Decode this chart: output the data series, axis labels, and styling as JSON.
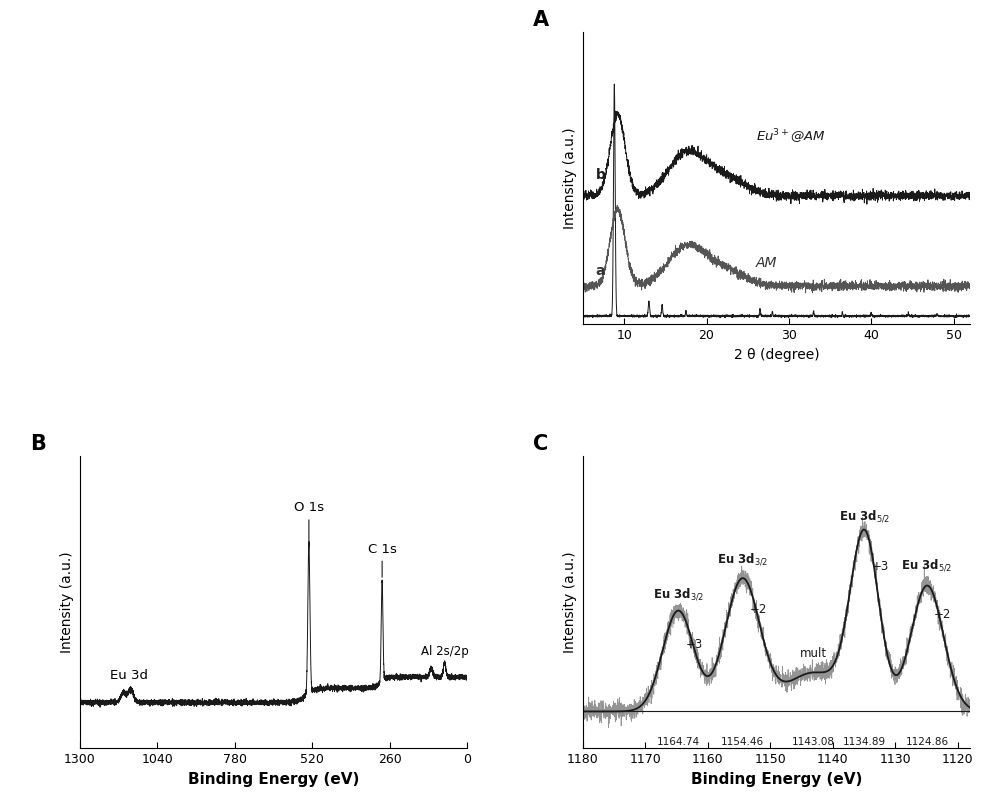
{
  "panel_A_label": "A",
  "panel_B_label": "B",
  "panel_C_label": "C",
  "xrd_xlim": [
    5,
    52
  ],
  "xrd_xticks": [
    10,
    20,
    30,
    40,
    50
  ],
  "xrd_xlabel": "2 θ (degree)",
  "xrd_ylabel": "Intensity (a.u.)",
  "xps_B_xlim": [
    1300,
    0
  ],
  "xps_B_xticks": [
    1300,
    1040,
    780,
    520,
    260,
    0
  ],
  "xps_B_xlabel": "Binding Energy (eV)",
  "xps_B_ylabel": "Intensity (a.u.)",
  "xps_C_xlim": [
    1180,
    1118
  ],
  "xps_C_xticks": [
    1180,
    1170,
    1160,
    1150,
    1140,
    1130,
    1120
  ],
  "xps_C_xlabel": "Binding Energy (eV)",
  "xps_C_ylabel": "Intensity (a.u.)",
  "label_a": "a",
  "label_b": "b",
  "label_AM": "AM",
  "label_Eu_AM": "Eu$^{3+}$@AM",
  "background_color": "#ffffff",
  "line_color_dark": "#1a1a1a",
  "line_color_gray": "#666666"
}
